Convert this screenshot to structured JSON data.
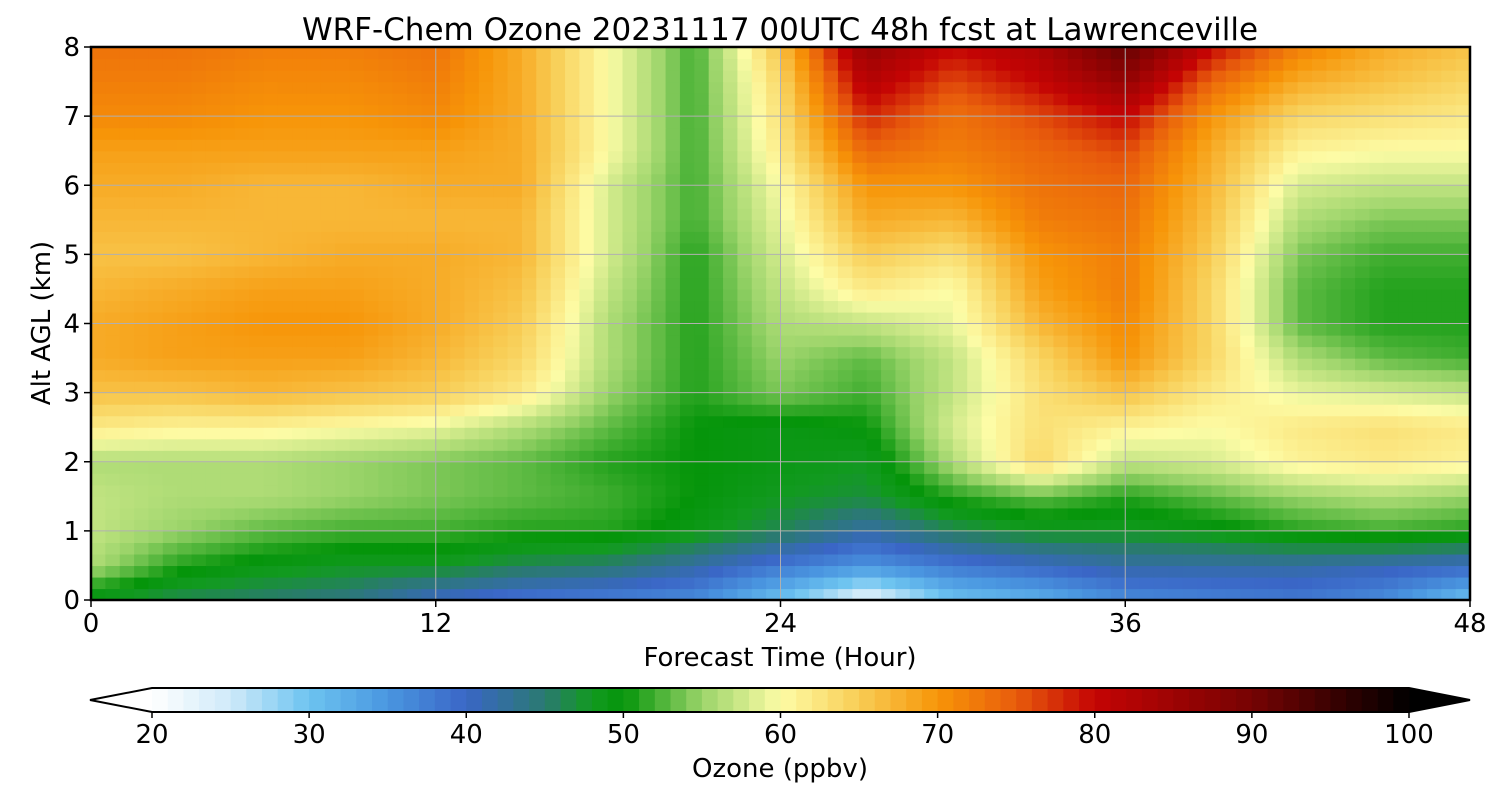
{
  "chart_data": {
    "type": "heatmap",
    "title": "WRF-Chem Ozone  20231117 00UTC 48h fcst at Lawrenceville",
    "xlabel": "Forecast Time (Hour)",
    "ylabel": "Alt AGL (km)",
    "xlim": [
      0,
      48
    ],
    "ylim": [
      0,
      8
    ],
    "x_ticks": [
      0,
      12,
      24,
      36,
      48
    ],
    "y_ticks": [
      0,
      1,
      2,
      3,
      4,
      5,
      6,
      7,
      8
    ],
    "grid": true,
    "x": [
      0,
      3,
      6,
      9,
      12,
      15,
      18,
      21,
      24,
      27,
      30,
      33,
      36,
      39,
      42,
      45,
      48
    ],
    "y": [
      0,
      0.5,
      1,
      1.5,
      2,
      2.5,
      3,
      3.5,
      4,
      4.5,
      5,
      5.5,
      6,
      6.5,
      7,
      7.5,
      8
    ],
    "z": [
      [
        48,
        46,
        45,
        44,
        40,
        38,
        37,
        36,
        30,
        22,
        30,
        32,
        36,
        37,
        38,
        36,
        30
      ],
      [
        56,
        51,
        49,
        48,
        48,
        46,
        45,
        42,
        38,
        35,
        38,
        40,
        42,
        42,
        42,
        41,
        40
      ],
      [
        57,
        55,
        53,
        52,
        52,
        51,
        51,
        49,
        46,
        42,
        46,
        48,
        48,
        49,
        51,
        52,
        51
      ],
      [
        57,
        56,
        56,
        55,
        54,
        53,
        52,
        50,
        48,
        47,
        51,
        53,
        51,
        53,
        55,
        56,
        55
      ],
      [
        56,
        56,
        56,
        55,
        54,
        53,
        51,
        50,
        49,
        48,
        56,
        64,
        57,
        58,
        61,
        62,
        61
      ],
      [
        62,
        61,
        61,
        60,
        59,
        56,
        53,
        50,
        49,
        50,
        58,
        63,
        61,
        60,
        62,
        63,
        62
      ],
      [
        66,
        66,
        67,
        66,
        65,
        62,
        55,
        51,
        54,
        52,
        57,
        63,
        66,
        62,
        59,
        58,
        57
      ],
      [
        68,
        69,
        69,
        69,
        67,
        64,
        56,
        51,
        55,
        53,
        57,
        64,
        70,
        64,
        56,
        53,
        52
      ],
      [
        68,
        69,
        70,
        70,
        68,
        65,
        56,
        51,
        56,
        57,
        59,
        67,
        71,
        64,
        53,
        51,
        51
      ],
      [
        67,
        68,
        69,
        69,
        68,
        66,
        57,
        51,
        57,
        62,
        60,
        69,
        72,
        64,
        53,
        51,
        51
      ],
      [
        66,
        66,
        67,
        68,
        68,
        67,
        58,
        51,
        58,
        65,
        63,
        70,
        72,
        65,
        54,
        52,
        52
      ],
      [
        67,
        67,
        67,
        67,
        67,
        67,
        58,
        52,
        59,
        68,
        67,
        72,
        73,
        66,
        56,
        54,
        54
      ],
      [
        68,
        68,
        67,
        67,
        68,
        68,
        58,
        52,
        60,
        70,
        70,
        73,
        74,
        67,
        58,
        57,
        57
      ],
      [
        69,
        69,
        69,
        69,
        69,
        68,
        60,
        52,
        62,
        74,
        72,
        74,
        76,
        68,
        61,
        60,
        60
      ],
      [
        71,
        71,
        70,
        70,
        71,
        68,
        60,
        52,
        63,
        78,
        73,
        76,
        80,
        70,
        64,
        63,
        62
      ],
      [
        72,
        72,
        71,
        71,
        72,
        68,
        60,
        52,
        64,
        82,
        76,
        80,
        86,
        74,
        68,
        66,
        64
      ],
      [
        73,
        73,
        72,
        72,
        73,
        68,
        60,
        52,
        66,
        86,
        80,
        83,
        92,
        80,
        72,
        68,
        66
      ]
    ],
    "colorbar": {
      "label": "Ozone  (ppbv)",
      "min": 20,
      "max": 100,
      "ticks": [
        20,
        30,
        40,
        50,
        60,
        70,
        80,
        90,
        100
      ],
      "stops": [
        [
          20,
          "#ffffff"
        ],
        [
          25,
          "#cfeaf9"
        ],
        [
          30,
          "#6cc3f0"
        ],
        [
          35,
          "#4a96e0"
        ],
        [
          40,
          "#3a66c6"
        ],
        [
          45,
          "#2a7a70"
        ],
        [
          48,
          "#129a20"
        ],
        [
          50,
          "#05950a"
        ],
        [
          55,
          "#9bd46a"
        ],
        [
          60,
          "#fdfca6"
        ],
        [
          65,
          "#f8cd55"
        ],
        [
          70,
          "#f79508"
        ],
        [
          75,
          "#e85c0c"
        ],
        [
          80,
          "#c40404"
        ],
        [
          90,
          "#760303"
        ],
        [
          100,
          "#000000"
        ]
      ]
    }
  }
}
